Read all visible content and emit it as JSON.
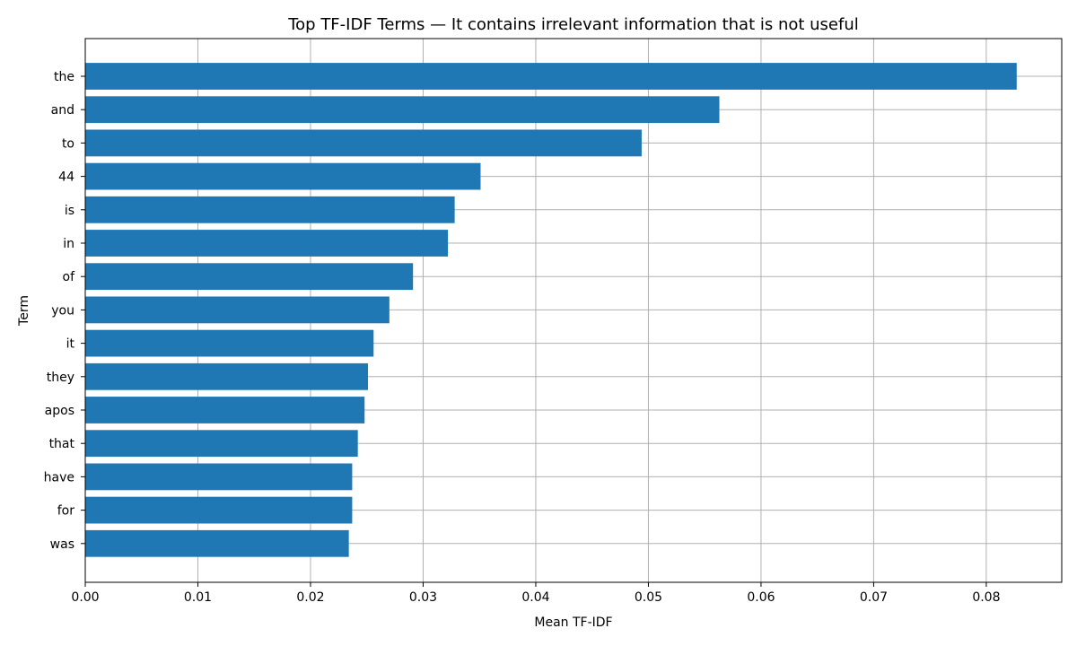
{
  "colors": {
    "bar": "#1f77b4",
    "grid": "#b0b0b0",
    "axis": "#000000",
    "background": "#ffffff"
  },
  "chart_data": {
    "type": "bar",
    "orientation": "horizontal",
    "title": "Top TF-IDF Terms — It contains irrelevant information that is not useful",
    "xlabel": "Mean TF-IDF",
    "ylabel": "Term",
    "grid": true,
    "xlim": [
      0.0,
      0.0867
    ],
    "xticks": [
      0.0,
      0.01,
      0.02,
      0.03,
      0.04,
      0.05,
      0.06,
      0.07,
      0.08
    ],
    "xtick_labels": [
      "0.00",
      "0.01",
      "0.02",
      "0.03",
      "0.04",
      "0.05",
      "0.06",
      "0.07",
      "0.08"
    ],
    "categories": [
      "the",
      "and",
      "to",
      "44",
      "is",
      "in",
      "of",
      "you",
      "it",
      "they",
      "apos",
      "that",
      "have",
      "for",
      "was"
    ],
    "values": [
      0.0827,
      0.0563,
      0.0494,
      0.0351,
      0.0328,
      0.0322,
      0.0291,
      0.027,
      0.0256,
      0.0251,
      0.0248,
      0.0242,
      0.0237,
      0.0237,
      0.0234
    ]
  }
}
